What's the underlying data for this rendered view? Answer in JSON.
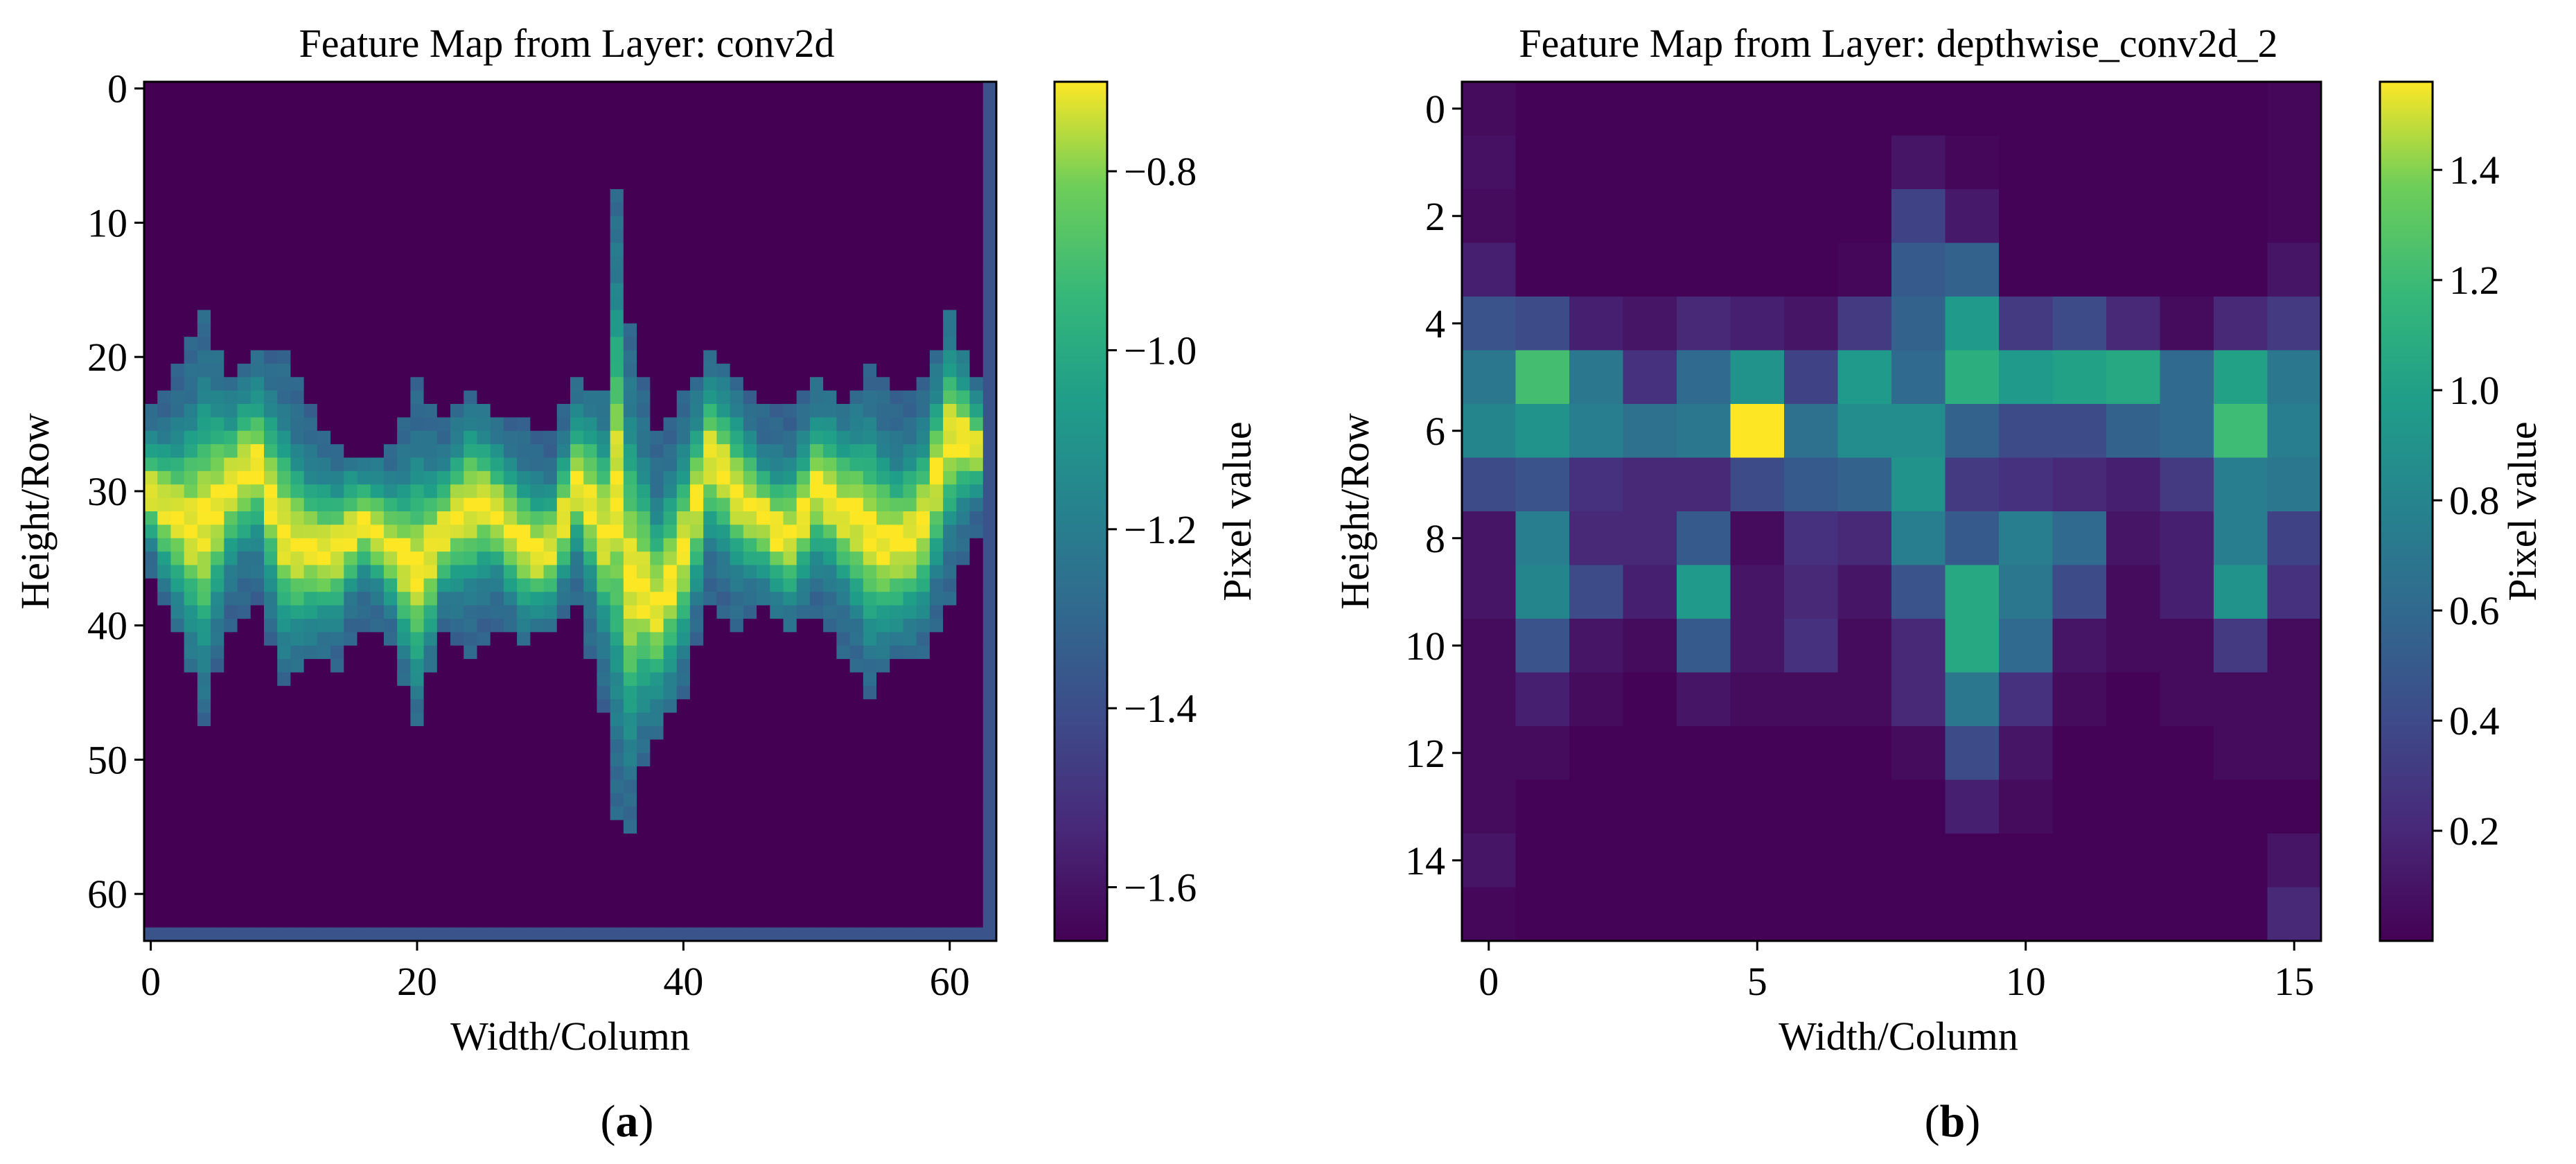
{
  "chart_data": [
    {
      "type": "heatmap",
      "panel_label": "a",
      "title": "Feature Map from Layer: conv2d",
      "xlabel": "Width/Column",
      "ylabel": "Height/Row",
      "colorbar_label": "Pixel value",
      "colormap": "viridis",
      "rows": 64,
      "cols": 64,
      "value_range": [
        -1.66,
        -0.7
      ],
      "colorbar_ticks": [
        -0.8,
        -1.0,
        -1.2,
        -1.4,
        -1.6
      ],
      "x_ticks": [
        0,
        20,
        40,
        60
      ],
      "y_ticks": [
        0,
        10,
        20,
        30,
        40,
        50,
        60
      ],
      "background_value": -1.66,
      "border_value": -1.38,
      "band_profile": {
        "columns": [
          0,
          2,
          4,
          6,
          8,
          10,
          12,
          14,
          16,
          18,
          20,
          22,
          24,
          26,
          28,
          30,
          32,
          34,
          35,
          36,
          37,
          38,
          40,
          42,
          44,
          46,
          48,
          50,
          52,
          54,
          56,
          58,
          60,
          62
        ],
        "top_edge": [
          24,
          21,
          17,
          22,
          20,
          20,
          24,
          27,
          28,
          27,
          22,
          25,
          23,
          25,
          25,
          26,
          22,
          23,
          8,
          18,
          22,
          26,
          23,
          20,
          22,
          24,
          24,
          22,
          24,
          21,
          23,
          22,
          17,
          22
        ],
        "bottom_edge": [
          36,
          40,
          47,
          40,
          38,
          44,
          42,
          43,
          40,
          41,
          47,
          40,
          42,
          40,
          41,
          40,
          38,
          46,
          54,
          55,
          50,
          48,
          45,
          38,
          40,
          38,
          40,
          39,
          42,
          45,
          42,
          42,
          38,
          33
        ]
      }
    },
    {
      "type": "heatmap",
      "panel_label": "b",
      "title": "Feature Map from Layer: depthwise_conv2d_2",
      "xlabel": "Width/Column",
      "ylabel": "Height/Row",
      "colorbar_label": "Pixel value",
      "colormap": "viridis",
      "rows": 16,
      "cols": 16,
      "value_range": [
        0.0,
        1.56
      ],
      "colorbar_ticks": [
        1.4,
        1.2,
        1.0,
        0.8,
        0.6,
        0.4,
        0.2
      ],
      "x_ticks": [
        0,
        5,
        10,
        15
      ],
      "y_ticks": [
        0,
        2,
        4,
        6,
        8,
        10,
        12,
        14
      ],
      "z": [
        [
          0.05,
          0.01,
          0.01,
          0.01,
          0.01,
          0.01,
          0.01,
          0.01,
          0.01,
          0.01,
          0.01,
          0.01,
          0.01,
          0.01,
          0.01,
          0.03
        ],
        [
          0.08,
          0.01,
          0.01,
          0.01,
          0.01,
          0.01,
          0.01,
          0.01,
          0.1,
          0.03,
          0.01,
          0.01,
          0.01,
          0.01,
          0.01,
          0.03
        ],
        [
          0.05,
          0.01,
          0.01,
          0.01,
          0.01,
          0.01,
          0.01,
          0.01,
          0.35,
          0.12,
          0.01,
          0.01,
          0.01,
          0.01,
          0.01,
          0.03
        ],
        [
          0.15,
          0.01,
          0.01,
          0.01,
          0.01,
          0.01,
          0.01,
          0.03,
          0.5,
          0.55,
          0.01,
          0.01,
          0.01,
          0.01,
          0.01,
          0.1
        ],
        [
          0.45,
          0.4,
          0.15,
          0.1,
          0.2,
          0.15,
          0.1,
          0.3,
          0.55,
          0.95,
          0.3,
          0.4,
          0.2,
          0.05,
          0.2,
          0.3
        ],
        [
          0.7,
          1.22,
          0.7,
          0.25,
          0.6,
          0.9,
          0.35,
          0.95,
          0.6,
          1.1,
          0.95,
          1.0,
          1.05,
          0.6,
          1.0,
          0.7
        ],
        [
          0.8,
          0.9,
          0.75,
          0.65,
          0.7,
          1.56,
          0.65,
          0.85,
          0.85,
          0.55,
          0.4,
          0.4,
          0.55,
          0.6,
          1.2,
          0.75
        ],
        [
          0.4,
          0.45,
          0.25,
          0.2,
          0.2,
          0.4,
          0.5,
          0.55,
          0.9,
          0.3,
          0.25,
          0.2,
          0.15,
          0.3,
          0.75,
          0.7
        ],
        [
          0.1,
          0.75,
          0.2,
          0.2,
          0.5,
          0.05,
          0.25,
          0.2,
          0.75,
          0.5,
          0.75,
          0.6,
          0.1,
          0.15,
          0.75,
          0.35
        ],
        [
          0.1,
          0.8,
          0.4,
          0.15,
          0.95,
          0.1,
          0.2,
          0.1,
          0.45,
          1.05,
          0.7,
          0.4,
          0.05,
          0.15,
          0.9,
          0.25
        ],
        [
          0.05,
          0.45,
          0.1,
          0.05,
          0.5,
          0.1,
          0.25,
          0.05,
          0.2,
          1.05,
          0.6,
          0.1,
          0.05,
          0.05,
          0.3,
          0.05
        ],
        [
          0.05,
          0.15,
          0.05,
          0.01,
          0.1,
          0.05,
          0.05,
          0.05,
          0.2,
          0.7,
          0.25,
          0.05,
          0.01,
          0.05,
          0.05,
          0.05
        ],
        [
          0.05,
          0.05,
          0.01,
          0.01,
          0.01,
          0.01,
          0.01,
          0.01,
          0.05,
          0.4,
          0.1,
          0.01,
          0.01,
          0.01,
          0.05,
          0.05
        ],
        [
          0.05,
          0.01,
          0.01,
          0.01,
          0.01,
          0.01,
          0.01,
          0.01,
          0.01,
          0.15,
          0.05,
          0.01,
          0.01,
          0.01,
          0.01,
          0.01
        ],
        [
          0.1,
          0.01,
          0.01,
          0.01,
          0.01,
          0.01,
          0.01,
          0.01,
          0.01,
          0.01,
          0.01,
          0.01,
          0.01,
          0.01,
          0.01,
          0.1
        ],
        [
          0.03,
          0.01,
          0.01,
          0.01,
          0.01,
          0.01,
          0.01,
          0.01,
          0.01,
          0.01,
          0.01,
          0.01,
          0.01,
          0.01,
          0.01,
          0.2
        ]
      ]
    }
  ]
}
